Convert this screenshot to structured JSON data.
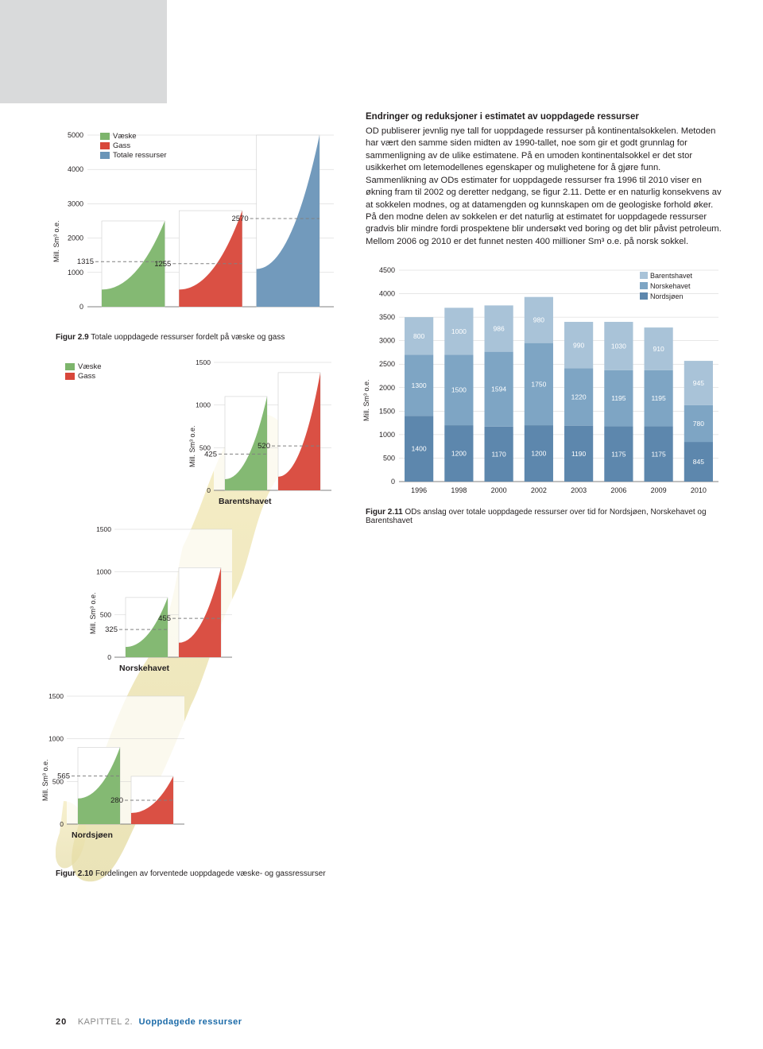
{
  "colors": {
    "vaeske": "#7db56c",
    "gass": "#d8473a",
    "total": "#6a95b8",
    "vaeske_light": "#bcd8b1",
    "gass_light": "#eba8a0",
    "total_light": "#b3c9da",
    "grid": "#cfcfcf",
    "axis": "#808080",
    "dash": "#808080",
    "stack_barents": "#a9c3d8",
    "stack_norske": "#7ea5c4",
    "stack_nord": "#5d87ad",
    "map_land": "#f3e9b8",
    "map_sea": "#eaf1e0"
  },
  "fig29": {
    "title_prefix": "Figur 2.9",
    "title_rest": " Totale uoppdagede ressurser fordelt på væske og gass",
    "ylabel": "Mill. Sm³ o.e.",
    "ymax": 5000,
    "ytick": 1000,
    "legend": [
      {
        "label": "Væske",
        "color": "#7db56c"
      },
      {
        "label": "Gass",
        "color": "#d8473a"
      },
      {
        "label": "Totale ressurser",
        "color": "#6a95b8"
      }
    ],
    "bars": [
      {
        "value": 1315,
        "low": 500,
        "high": 2500,
        "fill": "#7db56c",
        "light": "#bcd8b1"
      },
      {
        "value": 1255,
        "low": 500,
        "high": 2800,
        "fill": "#d8473a",
        "light": "#eba8a0"
      },
      {
        "value": 2570,
        "low": 1100,
        "high": 5000,
        "fill": "#6a95b8",
        "light": "#b3c9da"
      }
    ]
  },
  "fig210_legend": [
    {
      "label": "Væske",
      "color": "#7db56c"
    },
    {
      "label": "Gass",
      "color": "#d8473a"
    }
  ],
  "fig210_common": {
    "ylabel": "Mill. Sm³ o.e.",
    "ymax": 1500,
    "ytick": 500
  },
  "fig210_regions": {
    "barents": {
      "name": "Barentshavet",
      "bars": [
        {
          "value": 425,
          "low": 130,
          "high": 1100,
          "fill": "#7db56c",
          "light": "#bcd8b1"
        },
        {
          "value": 520,
          "low": 160,
          "high": 1380,
          "fill": "#d8473a",
          "light": "#eba8a0"
        }
      ]
    },
    "norske": {
      "name": "Norskehavet",
      "bars": [
        {
          "value": 325,
          "low": 120,
          "high": 700,
          "fill": "#7db56c",
          "light": "#bcd8b1"
        },
        {
          "value": 455,
          "low": 170,
          "high": 1050,
          "fill": "#d8473a",
          "light": "#eba8a0"
        }
      ]
    },
    "nord": {
      "name": "Nordsjøen",
      "bars": [
        {
          "value": 565,
          "low": 300,
          "high": 900,
          "fill": "#7db56c",
          "light": "#bcd8b1"
        },
        {
          "value": 280,
          "low": 130,
          "high": 560,
          "fill": "#d8473a",
          "light": "#eba8a0"
        }
      ]
    }
  },
  "fig210_caption_prefix": "Figur 2.10",
  "fig210_caption_rest": " Fordelingen av forventede uoppdagede væske- og gassressurser",
  "body": {
    "heading": "Endringer og reduksjoner i estimatet av uoppdagede ressurser",
    "text": "OD publiserer jevnlig nye tall for uoppdagede ressurser på kontinentalsokkelen. Metoden har vært den samme siden midten av 1990-tallet, noe som gir et godt grunnlag for sammenligning av de ulike estimatene. På en umoden kontinentalsokkel er det stor usikkerhet om letemodellenes egenskaper og mulighetene for å gjøre funn. Sammenlikning av ODs estimater for uoppdagede ressurser fra 1996 til 2010 viser en økning fram til 2002 og deretter nedgang, se figur 2.11. Dette er en naturlig konsekvens av at sokkelen modnes, og at datamengden og kunnskapen om de geologiske forhold øker. På den modne delen av sokkelen er det naturlig at estimatet for uoppdagede ressurser gradvis blir mindre fordi prospektene blir undersøkt ved boring og det blir påvist petroleum. Mellom 2006 og 2010 er det funnet nesten 400 millioner Sm³ o.e. på norsk sokkel."
  },
  "fig211": {
    "title_prefix": "Figur 2.11",
    "title_rest": " ODs anslag over totale uoppdagede ressurser over tid for Nordsjøen, Norskehavet og Barentshavet",
    "ylabel": "Mill. Sm³ o.e.",
    "ymax": 4500,
    "ytick": 500,
    "legend": [
      {
        "label": "Barentshavet",
        "color": "#a9c3d8"
      },
      {
        "label": "Norskehavet",
        "color": "#7ea5c4"
      },
      {
        "label": "Nordsjøen",
        "color": "#5d87ad"
      }
    ],
    "years": [
      "1996",
      "1998",
      "2000",
      "2002",
      "2003",
      "2006",
      "2009",
      "2010"
    ],
    "stacks": [
      {
        "barents": 800,
        "norske": 1300,
        "nord": 1400
      },
      {
        "barents": 1000,
        "norske": 1500,
        "nord": 1200
      },
      {
        "barents": 986,
        "norske": 1594,
        "nord": 1170
      },
      {
        "barents": 980,
        "norske": 1750,
        "nord": 1200
      },
      {
        "barents": 990,
        "norske": 1220,
        "nord": 1190
      },
      {
        "barents": 1030,
        "norske": 1195,
        "nord": 1175
      },
      {
        "barents": 910,
        "norske": 1195,
        "nord": 1175
      },
      {
        "barents": 945,
        "norske": 780,
        "nord": 845
      }
    ]
  },
  "footer": {
    "page": "20",
    "chapter": "KAPITTEL 2.",
    "title": "Uoppdagede ressurser"
  }
}
